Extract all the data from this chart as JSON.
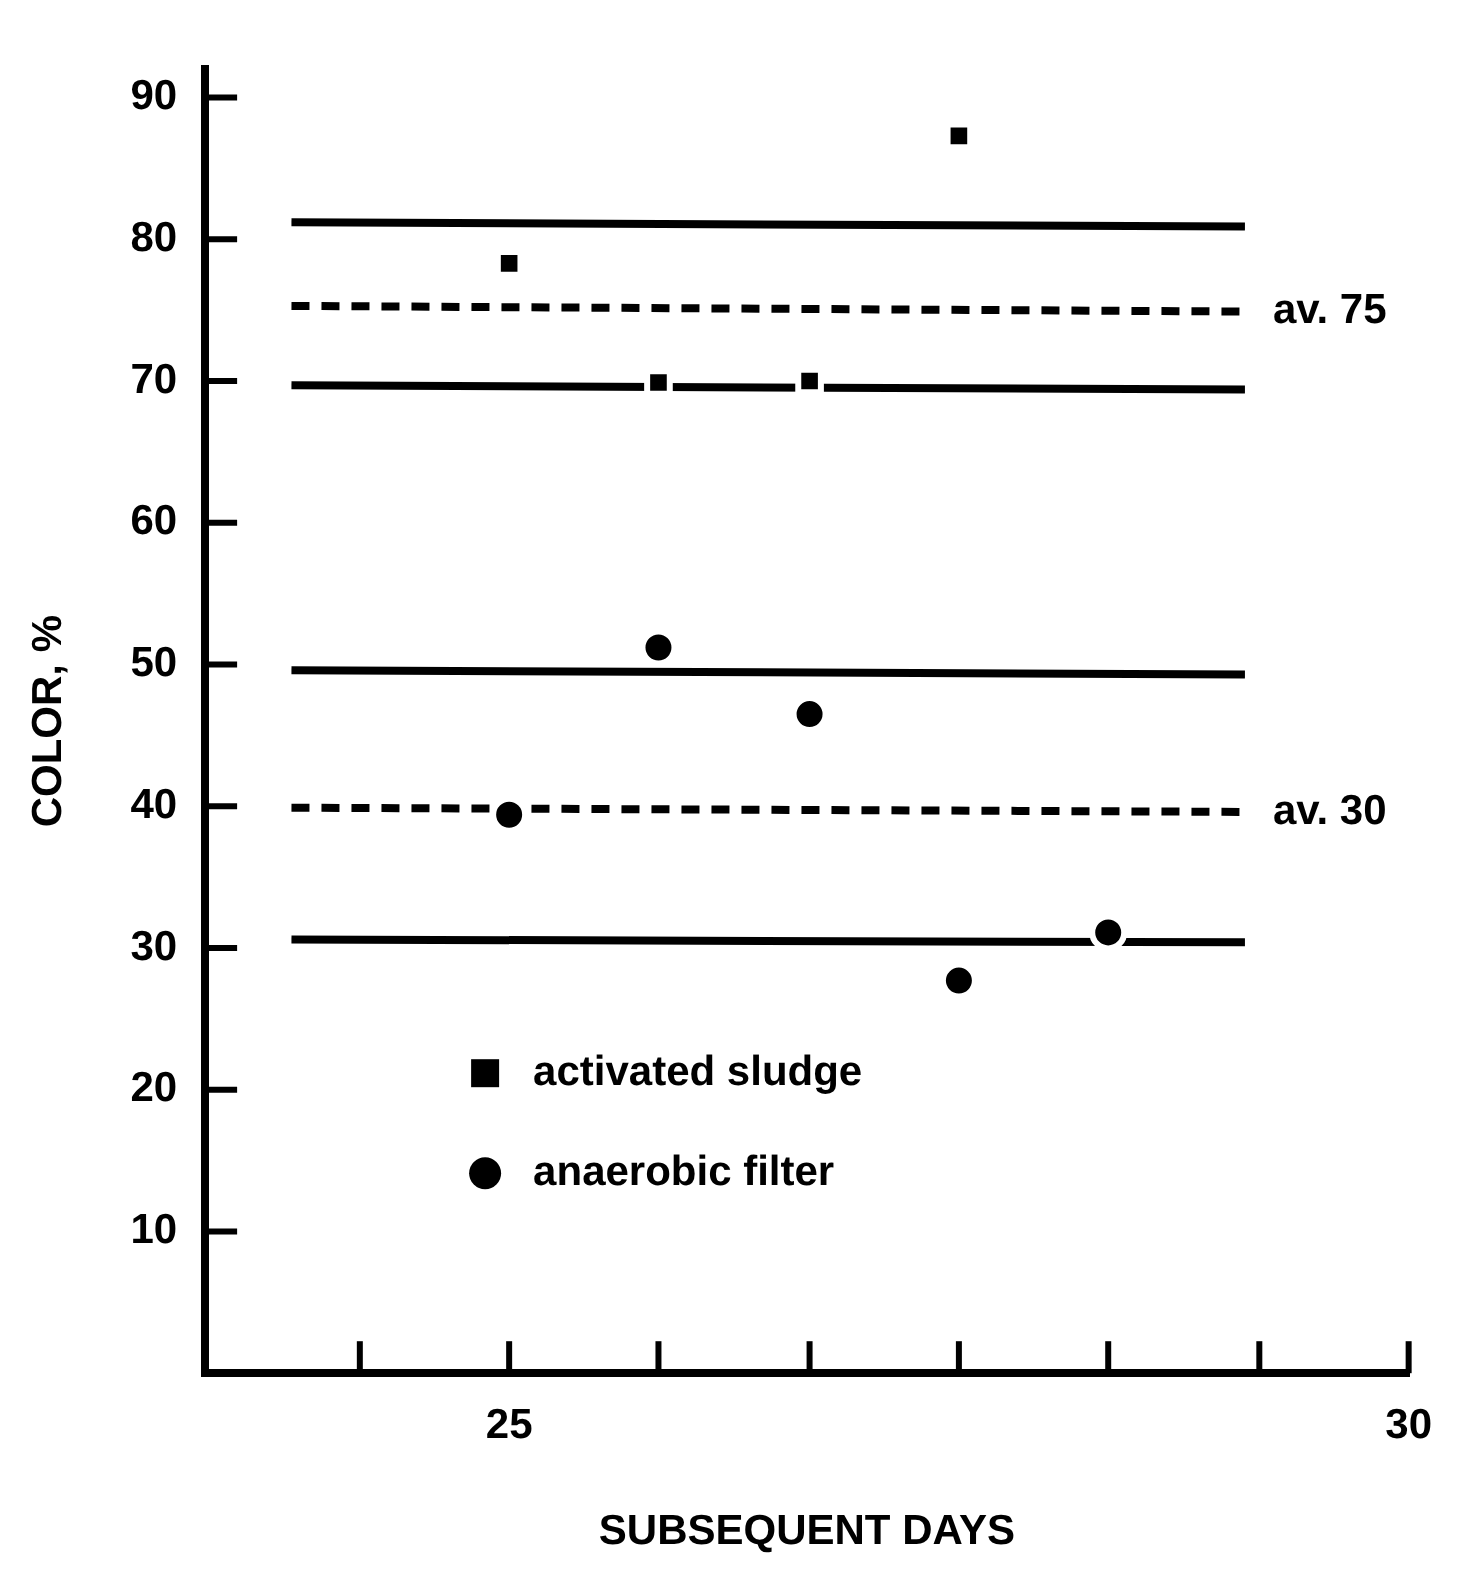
{
  "chart_data": {
    "type": "scatter",
    "xlabel": "SUBSEQUENT DAYS",
    "ylabel": "COLOR, %",
    "xlim": [
      23.31,
      30
    ],
    "xticks": [
      {
        "value": 24.17,
        "label": null
      },
      25,
      {
        "value": 25.83,
        "label": null
      },
      {
        "value": 26.67,
        "label": null
      },
      {
        "value": 27.5,
        "label": null
      },
      {
        "value": 28.33,
        "label": null
      },
      {
        "value": 29.17,
        "label": null
      },
      30
    ],
    "ylim": [
      0,
      92
    ],
    "yticks": [
      10,
      20,
      30,
      40,
      50,
      60,
      70,
      80,
      90
    ],
    "grid": false,
    "legend": "bottom left",
    "series": [
      {
        "name": "activated sludge",
        "marker": "square",
        "color": "#000000",
        "x": [
          25,
          25.83,
          26.67,
          27.5
        ],
        "values": [
          78.3,
          69.9,
          70,
          87.3
        ]
      },
      {
        "name": "anaerobic filter",
        "marker": "circle",
        "color": "#000000",
        "x": [
          25,
          25.83,
          26.67,
          27.5,
          28.33
        ],
        "values": [
          39.4,
          51.2,
          46.5,
          27.7,
          31.1
        ]
      },
      {
        "type": "line",
        "marker": "none",
        "line_style": "solid",
        "color": "#000000",
        "x": [
          23.79,
          29.09
        ],
        "values": [
          81.2,
          80.9
        ]
      },
      {
        "type": "line",
        "marker": "none",
        "line_style": "dashed",
        "color": "#000000",
        "x": [
          23.79,
          29.09
        ],
        "values": [
          75.3,
          74.9
        ]
      },
      {
        "type": "line",
        "marker": "none",
        "line_style": "solid",
        "color": "#000000",
        "x": [
          23.79,
          29.09
        ],
        "values": [
          69.7,
          69.4
        ]
      },
      {
        "type": "line",
        "marker": "none",
        "line_style": "solid",
        "color": "#000000",
        "x": [
          23.79,
          29.09
        ],
        "values": [
          49.6,
          49.3
        ]
      },
      {
        "type": "line",
        "marker": "none",
        "line_style": "dashed",
        "color": "#000000",
        "x": [
          23.79,
          29.09
        ],
        "values": [
          39.9,
          39.6
        ]
      },
      {
        "type": "line",
        "marker": "none",
        "line_style": "solid",
        "color": "#000000",
        "x": [
          23.79,
          29.09
        ],
        "values": [
          30.6,
          30.4
        ]
      }
    ],
    "annotations": [
      "av. 75",
      "av. 30"
    ]
  }
}
